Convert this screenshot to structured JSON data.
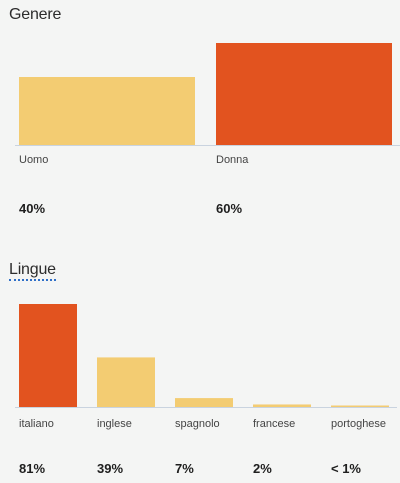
{
  "palette": {
    "high": "#e2531f",
    "low": "#f3cc72"
  },
  "chart_data": [
    {
      "type": "bar",
      "title": "Genere",
      "categories": [
        "Uomo",
        "Donna"
      ],
      "values": [
        40,
        60
      ],
      "value_labels": [
        "40%",
        "60%"
      ],
      "ylim": [
        0,
        60
      ],
      "grid": false,
      "colors": [
        "#f3cc72",
        "#e2531f"
      ]
    },
    {
      "type": "bar",
      "title": "Lingue",
      "categories": [
        "italiano",
        "inglese",
        "spagnolo",
        "francese",
        "portoghese"
      ],
      "values": [
        81,
        39,
        7,
        2,
        0.5
      ],
      "value_labels": [
        "81%",
        "39%",
        "7%",
        "2%",
        "< 1%"
      ],
      "ylim": [
        0,
        81
      ],
      "grid": false,
      "colors": [
        "#e2531f",
        "#f3cc72",
        "#f3cc72",
        "#f3cc72",
        "#f3cc72"
      ]
    }
  ]
}
